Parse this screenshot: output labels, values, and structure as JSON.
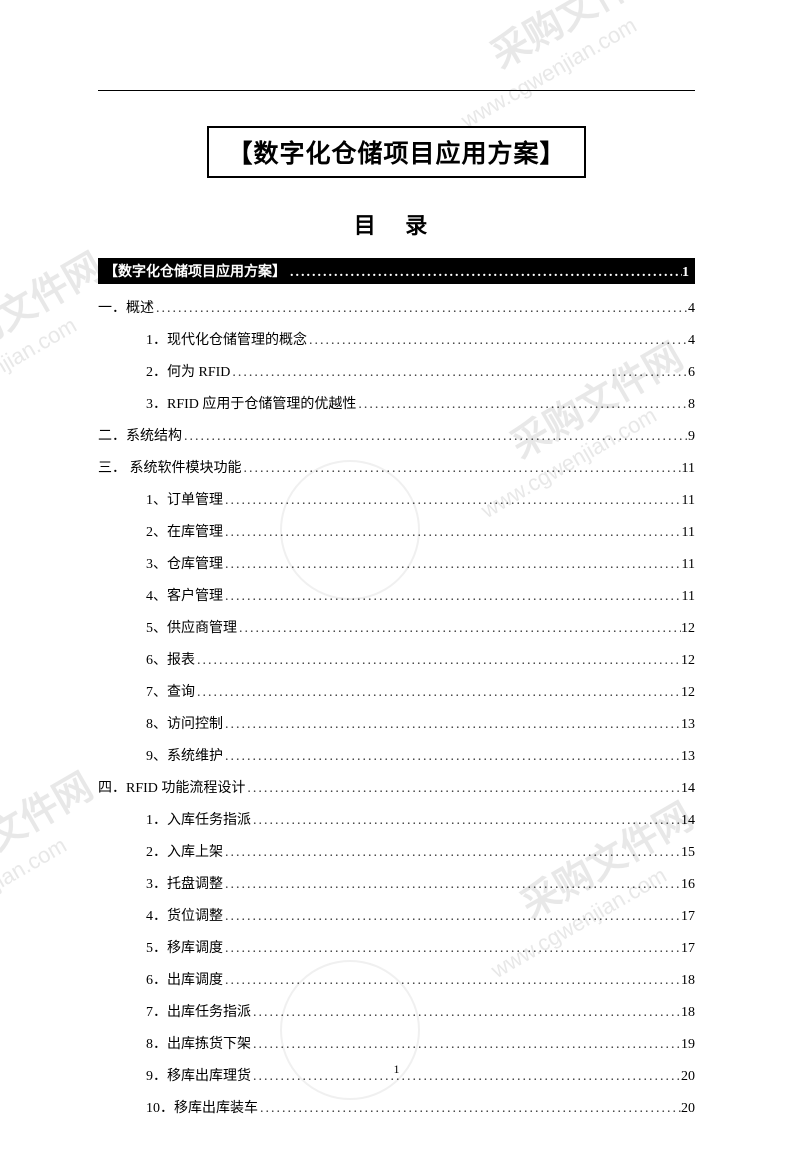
{
  "watermarks": {
    "text": "采购文件网",
    "url": "www.cgwenjian.com"
  },
  "document": {
    "title": "【数字化仓储项目应用方案】",
    "toc_heading": "目  录",
    "black_bar": {
      "text": "【数字化仓储项目应用方案】",
      "page": "1"
    },
    "entries": [
      {
        "level": 1,
        "text": "一．概述",
        "page": "4"
      },
      {
        "level": 2,
        "text": "1．现代化仓储管理的概念",
        "page": "4"
      },
      {
        "level": 2,
        "text": "2．何为 RFID",
        "page": "6"
      },
      {
        "level": 2,
        "text": "3．RFID 应用于仓储管理的优越性",
        "page": "8"
      },
      {
        "level": 1,
        "text": "二．系统结构",
        "page": "9"
      },
      {
        "level": 1,
        "text": "三． 系统软件模块功能",
        "page": "11"
      },
      {
        "level": 2,
        "text": "1、订单管理",
        "page": "11"
      },
      {
        "level": 2,
        "text": "2、在库管理",
        "page": "11"
      },
      {
        "level": 2,
        "text": "3、仓库管理",
        "page": "11"
      },
      {
        "level": 2,
        "text": "4、客户管理",
        "page": "11"
      },
      {
        "level": 2,
        "text": "5、供应商管理",
        "page": "12"
      },
      {
        "level": 2,
        "text": "6、报表",
        "page": "12"
      },
      {
        "level": 2,
        "text": "7、查询",
        "page": "12"
      },
      {
        "level": 2,
        "text": "8、访问控制",
        "page": "13"
      },
      {
        "level": 2,
        "text": "9、系统维护",
        "page": "13"
      },
      {
        "level": 1,
        "text": "四．RFID 功能流程设计",
        "page": "14"
      },
      {
        "level": 2,
        "text": "1．入库任务指派",
        "page": "14"
      },
      {
        "level": 2,
        "text": "2．入库上架",
        "page": "15"
      },
      {
        "level": 2,
        "text": "3．托盘调整",
        "page": "16"
      },
      {
        "level": 2,
        "text": "4．货位调整",
        "page": "17"
      },
      {
        "level": 2,
        "text": "5．移库调度",
        "page": "17"
      },
      {
        "level": 2,
        "text": "6．出库调度",
        "page": "18"
      },
      {
        "level": 2,
        "text": "7．出库任务指派",
        "page": "18"
      },
      {
        "level": 2,
        "text": "8．出库拣货下架",
        "page": "19"
      },
      {
        "level": 2,
        "text": "9．移库出库理货",
        "page": "20"
      },
      {
        "level": 2,
        "text": "10．移库出库装车",
        "page": "20"
      }
    ],
    "page_number": "1"
  },
  "dots": "...................................................................................................................................."
}
